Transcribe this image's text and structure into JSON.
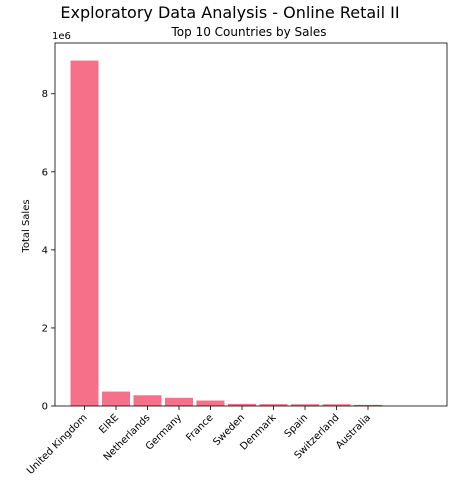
{
  "chart_data": {
    "type": "bar",
    "suptitle": "Exploratory Data Analysis - Online Retail II",
    "title": "Top 10 Countries by Sales",
    "xlabel": "",
    "ylabel": "Total Sales",
    "offset_label": "1e6",
    "categories": [
      "United Kingdom",
      "EIRE",
      "Netherlands",
      "Germany",
      "France",
      "Sweden",
      "Denmark",
      "Spain",
      "Switzerland",
      "Australia"
    ],
    "values": [
      8850000,
      370000,
      275000,
      210000,
      140000,
      55000,
      48000,
      45000,
      45000,
      30000
    ],
    "ylim": [
      0,
      9300000
    ],
    "yticks": [
      0,
      2000000,
      4000000,
      6000000,
      8000000
    ],
    "ytick_labels": [
      "0",
      "2",
      "4",
      "6",
      "8"
    ],
    "bar_color": "#f7708a",
    "grid": false
  }
}
